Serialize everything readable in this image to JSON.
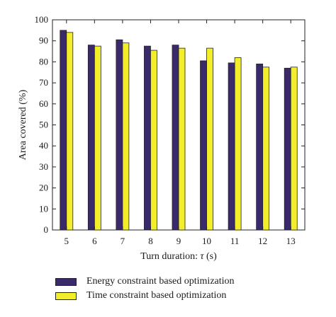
{
  "chart_data": {
    "type": "bar",
    "title": "",
    "xlabel_prefix": "Turn duration: ",
    "xlabel_symbol": "τ",
    "xlabel_suffix": " (s)",
    "ylabel": "Area covered (%)",
    "ylim": [
      0,
      100
    ],
    "yticks": [
      0,
      10,
      20,
      30,
      40,
      50,
      60,
      70,
      80,
      90,
      100
    ],
    "categories": [
      "5",
      "6",
      "7",
      "8",
      "9",
      "10",
      "11",
      "12",
      "13"
    ],
    "series": [
      {
        "name": "Energy constraint based optimization",
        "color": "#3b2a6b",
        "values": [
          95,
          88,
          90.5,
          87.5,
          88,
          80.5,
          79.5,
          79,
          77
        ]
      },
      {
        "name": "Time constraint based optimization",
        "color": "#f2ee2c",
        "values": [
          94,
          87.5,
          89,
          85.5,
          86.5,
          86.5,
          82,
          77.5,
          77.5
        ]
      }
    ],
    "grid": false,
    "legend_position": "bottom"
  }
}
